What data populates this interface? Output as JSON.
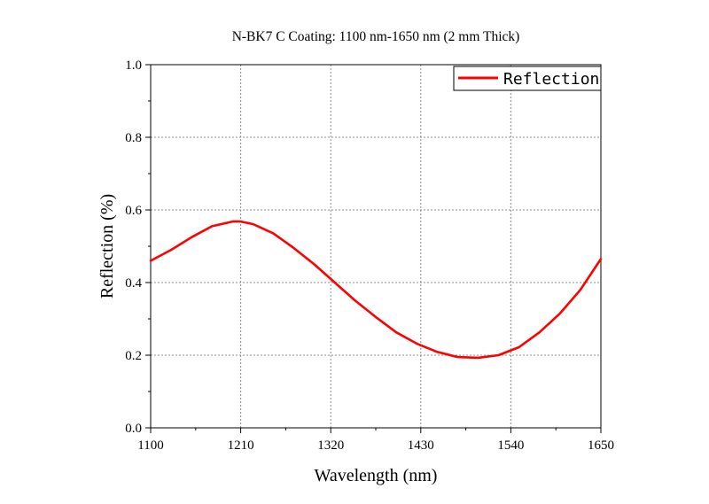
{
  "chart_data": {
    "type": "line",
    "title": "N-BK7 C Coating: 1100 nm-1650 nm (2 mm Thick)",
    "xlabel": "Wavelength (nm)",
    "ylabel": "Reflection (%)",
    "xlim": [
      1100,
      1650
    ],
    "ylim": [
      0.0,
      1.0
    ],
    "xticks": [
      "1100",
      "1210",
      "1320",
      "1430",
      "1540",
      "1650"
    ],
    "yticks": [
      "0.0",
      "0.2",
      "0.4",
      "0.6",
      "0.8",
      "1.0"
    ],
    "grid": true,
    "legend_position": "top-right",
    "series": [
      {
        "name": "Reflection",
        "color": "#ff0000",
        "x": [
          1100,
          1125,
          1150,
          1175,
          1200,
          1210,
          1225,
          1250,
          1275,
          1300,
          1325,
          1350,
          1375,
          1400,
          1425,
          1450,
          1475,
          1500,
          1525,
          1550,
          1575,
          1600,
          1625,
          1650
        ],
        "y": [
          0.46,
          0.49,
          0.525,
          0.555,
          0.568,
          0.568,
          0.561,
          0.535,
          0.495,
          0.45,
          0.4,
          0.35,
          0.305,
          0.263,
          0.232,
          0.209,
          0.195,
          0.193,
          0.2,
          0.222,
          0.263,
          0.315,
          0.38,
          0.465
        ]
      }
    ]
  }
}
